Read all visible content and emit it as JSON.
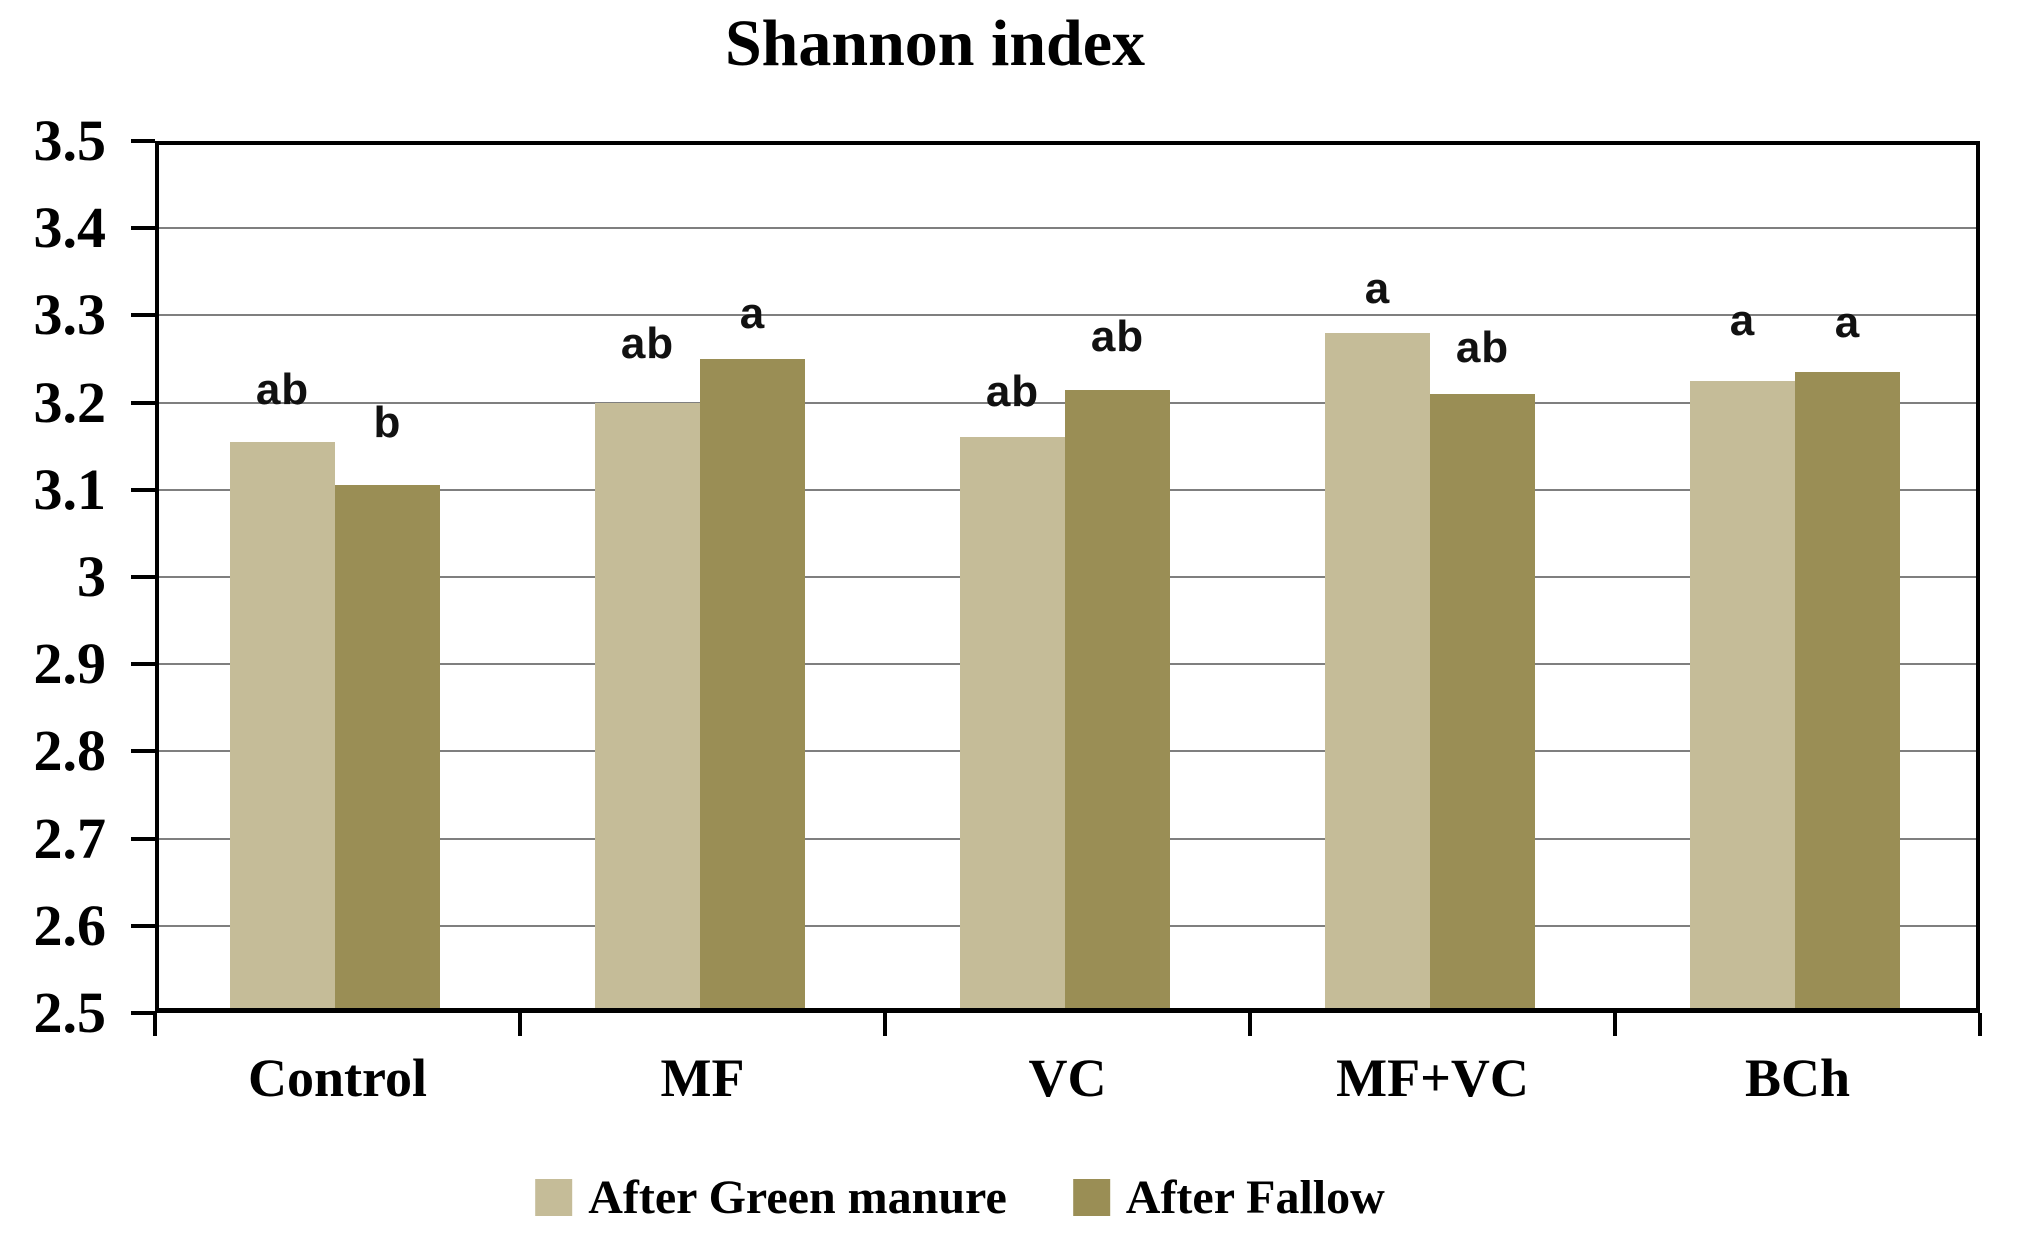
{
  "chart_data": {
    "type": "bar",
    "title": "Shannon index",
    "categories": [
      "Control",
      "MF",
      "VC",
      "MF+VC",
      "BCh"
    ],
    "series": [
      {
        "name": "After Green manure",
        "color": "#c5bc98",
        "values": [
          3.155,
          3.2,
          3.16,
          3.28,
          3.225
        ],
        "letters": [
          "ab",
          "ab",
          "ab",
          "a",
          "a"
        ]
      },
      {
        "name": "After Fallow",
        "color": "#9a8e55",
        "values": [
          3.105,
          3.25,
          3.215,
          3.21,
          3.235
        ],
        "letters": [
          "b",
          "a",
          "ab",
          "ab",
          "a"
        ]
      }
    ],
    "xlabel": "",
    "ylabel": "",
    "ylim": [
      2.5,
      3.5
    ],
    "ytick_step": 0.1,
    "ytick_labels": [
      "3.5",
      "3.4",
      "3.3",
      "3.2",
      "3.1",
      "3",
      "2.9",
      "2.8",
      "2.7",
      "2.6",
      "2.5"
    ],
    "grid": true,
    "legend_position": "bottom",
    "colors": {
      "grid": "#7f7f7f",
      "axis": "#000000",
      "text": "#000000"
    },
    "letter_gaps": [
      [
        33,
        43
      ],
      [
        40,
        26
      ],
      [
        26,
        34
      ],
      [
        25,
        27
      ],
      [
        41,
        30
      ]
    ]
  }
}
